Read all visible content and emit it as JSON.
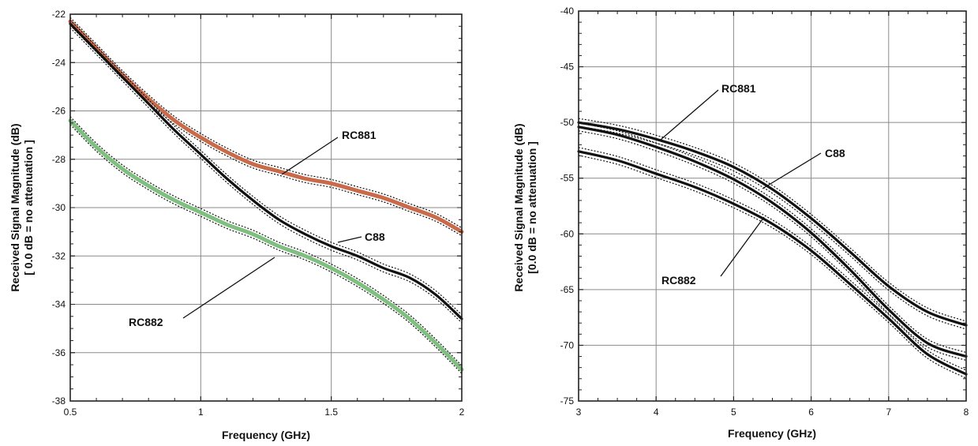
{
  "chart_data": [
    {
      "type": "line",
      "xlabel": "Frequency  (GHz)",
      "ylabel": [
        "Received  Signal  Magnitude  (dB)",
        "[ 0.0  dB  =  no  attenuation  ]"
      ],
      "xlim": [
        0.5,
        2
      ],
      "ylim": [
        -38,
        -22
      ],
      "xticks": [
        "0.5",
        "1",
        "1.5",
        "2"
      ],
      "yticks": [
        "-22",
        "-24",
        "-26",
        "-28",
        "-30",
        "-32",
        "-34",
        "-36",
        "-38"
      ],
      "grid": true,
      "series": [
        {
          "name": "RC881",
          "color": "#c96a4a",
          "x": [
            0.5,
            0.6,
            0.7,
            0.8,
            0.9,
            1.0,
            1.1,
            1.2,
            1.3,
            1.4,
            1.5,
            1.6,
            1.7,
            1.8,
            1.9,
            2.0
          ],
          "y": [
            -22.3,
            -23.4,
            -24.5,
            -25.5,
            -26.4,
            -27.1,
            -27.7,
            -28.2,
            -28.5,
            -28.8,
            -29.0,
            -29.3,
            -29.6,
            -30.0,
            -30.4,
            -31.0
          ]
        },
        {
          "name": "C88",
          "color": "#111111",
          "x": [
            0.5,
            0.6,
            0.7,
            0.8,
            0.9,
            1.0,
            1.1,
            1.2,
            1.3,
            1.4,
            1.5,
            1.6,
            1.7,
            1.8,
            1.9,
            2.0
          ],
          "y": [
            -22.4,
            -23.5,
            -24.6,
            -25.7,
            -26.8,
            -27.8,
            -28.8,
            -29.7,
            -30.5,
            -31.1,
            -31.6,
            -32.0,
            -32.5,
            -32.9,
            -33.6,
            -34.6
          ]
        },
        {
          "name": "RC882",
          "color": "#7fbf7f",
          "x": [
            0.5,
            0.6,
            0.7,
            0.8,
            0.9,
            1.0,
            1.1,
            1.2,
            1.3,
            1.4,
            1.5,
            1.6,
            1.7,
            1.8,
            1.9,
            2.0
          ],
          "y": [
            -26.4,
            -27.5,
            -28.4,
            -29.1,
            -29.7,
            -30.2,
            -30.7,
            -31.1,
            -31.6,
            -32.0,
            -32.5,
            -33.1,
            -33.8,
            -34.6,
            -35.6,
            -36.7
          ]
        }
      ],
      "annotations": [
        "RC881",
        "C88",
        "RC882"
      ]
    },
    {
      "type": "line",
      "xlabel": "Frequency  (GHz)",
      "ylabel": [
        "Received  Signal  Magnitude  (dB)",
        "[0.0  dB  =  no  attenuation  ]"
      ],
      "xlim": [
        3,
        8
      ],
      "ylim": [
        -75,
        -40
      ],
      "xticks": [
        "3",
        "4",
        "5",
        "6",
        "7",
        "8"
      ],
      "yticks": [
        "-40",
        "-45",
        "-50",
        "-55",
        "-60",
        "-65",
        "-70",
        "-75"
      ],
      "grid": true,
      "series": [
        {
          "name": "RC881",
          "color": "#111111",
          "x": [
            3.0,
            3.5,
            4.0,
            4.5,
            5.0,
            5.5,
            6.0,
            6.5,
            7.0,
            7.5,
            8.0
          ],
          "y": [
            -50.0,
            -50.6,
            -51.5,
            -52.6,
            -54.0,
            -56.0,
            -58.6,
            -61.6,
            -64.7,
            -67.0,
            -68.2
          ]
        },
        {
          "name": "C88",
          "color": "#111111",
          "x": [
            3.0,
            3.5,
            4.0,
            4.5,
            5.0,
            5.5,
            6.0,
            6.5,
            7.0,
            7.5,
            8.0
          ],
          "y": [
            -50.4,
            -51.1,
            -52.2,
            -53.5,
            -55.1,
            -57.2,
            -59.9,
            -63.2,
            -66.8,
            -69.8,
            -71.0
          ]
        },
        {
          "name": "RC882",
          "color": "#111111",
          "x": [
            3.0,
            3.5,
            4.0,
            4.5,
            5.0,
            5.5,
            6.0,
            6.5,
            7.0,
            7.5,
            8.0
          ],
          "y": [
            -52.6,
            -53.4,
            -54.6,
            -55.8,
            -57.3,
            -59.1,
            -61.5,
            -64.5,
            -67.6,
            -70.8,
            -72.6
          ]
        }
      ],
      "annotations": [
        "RC881",
        "C88",
        "RC882"
      ]
    }
  ]
}
